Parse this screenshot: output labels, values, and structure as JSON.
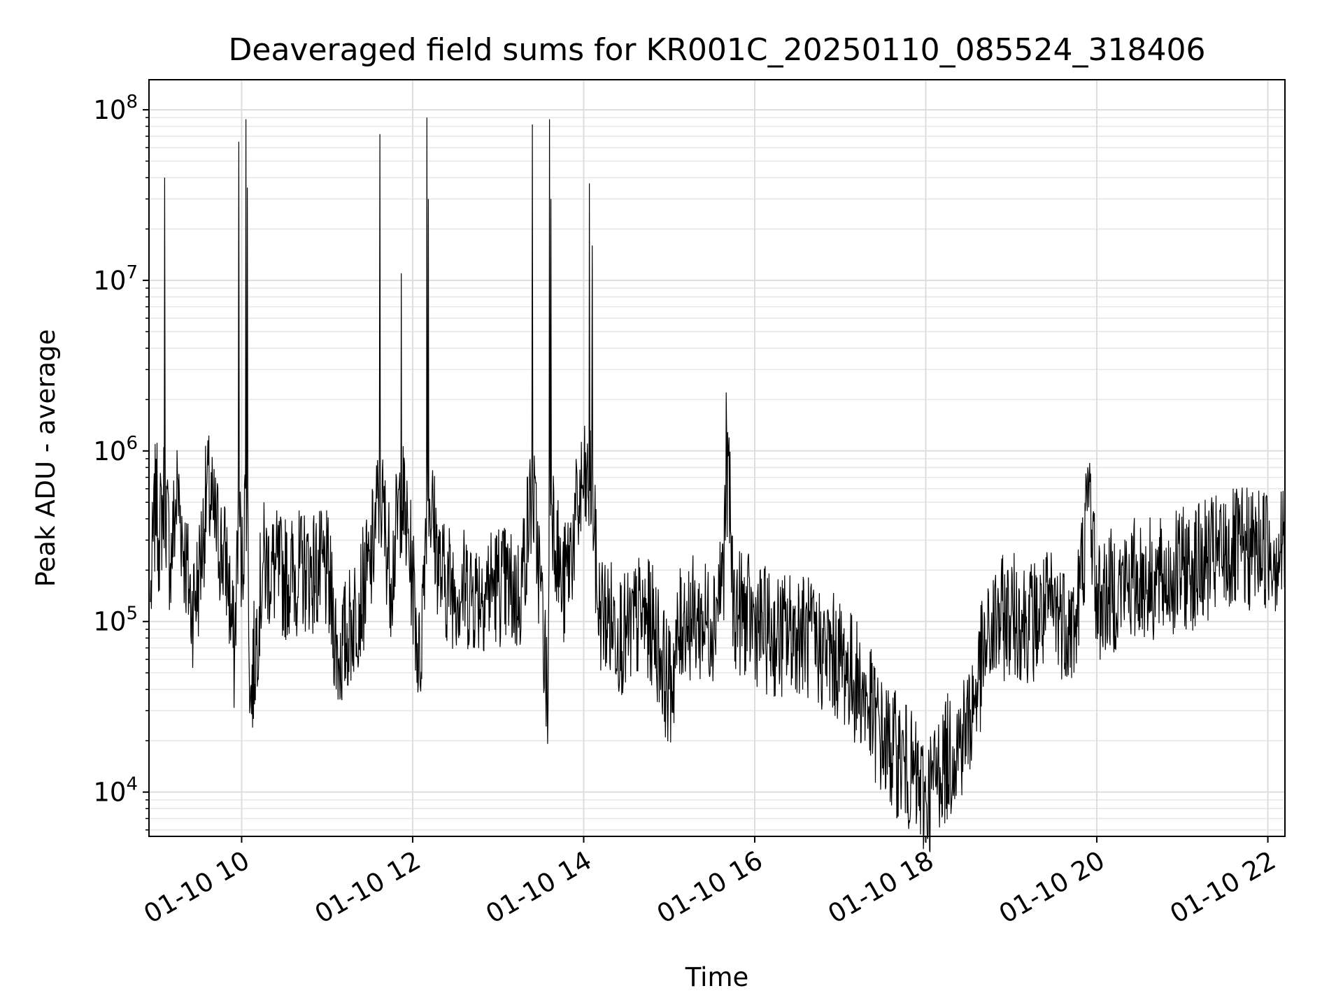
{
  "chart_data": {
    "type": "line",
    "title": "Deaveraged field sums for KR001C_20250110_085524_318406",
    "xlabel": "Time",
    "ylabel": "Peak ADU - average",
    "x_scale": "time",
    "y_scale": "log",
    "grid": true,
    "xlim": [
      "2025-01-10 08:55",
      "2025-01-10 22:12"
    ],
    "ylim": [
      5500,
      150000000
    ],
    "x_ticks": [
      "01-10 10",
      "01-10 12",
      "01-10 14",
      "01-10 16",
      "01-10 18",
      "01-10 20",
      "01-10 22"
    ],
    "y_ticks": [
      {
        "base": "10",
        "exp": "4",
        "value": 10000
      },
      {
        "base": "10",
        "exp": "5",
        "value": 100000
      },
      {
        "base": "10",
        "exp": "6",
        "value": 1000000
      },
      {
        "base": "10",
        "exp": "7",
        "value": 10000000
      },
      {
        "base": "10",
        "exp": "8",
        "value": 100000000
      }
    ],
    "series": [
      {
        "color": "#000000",
        "points": [
          [
            "2025-01-10 08:56",
            130000
          ],
          [
            "2025-01-10 09:00",
            900000
          ],
          [
            "2025-01-10 09:02",
            300000
          ],
          [
            "2025-01-10 09:06",
            40000000
          ],
          [
            "2025-01-10 09:10",
            220000
          ],
          [
            "2025-01-10 09:15",
            700000
          ],
          [
            "2025-01-10 09:20",
            250000
          ],
          [
            "2025-01-10 09:25",
            120000
          ],
          [
            "2025-01-10 09:30",
            180000
          ],
          [
            "2025-01-10 09:36",
            850000
          ],
          [
            "2025-01-10 09:40",
            400000
          ],
          [
            "2025-01-10 09:50",
            200000
          ],
          [
            "2025-01-10 09:55",
            60000
          ],
          [
            "2025-01-10 09:58",
            65000000
          ],
          [
            "2025-01-10 10:00",
            180000
          ],
          [
            "2025-01-10 10:03",
            88000000
          ],
          [
            "2025-01-10 10:04",
            35000000
          ],
          [
            "2025-01-10 10:06",
            32000
          ],
          [
            "2025-01-10 10:15",
            220000
          ],
          [
            "2025-01-10 10:30",
            180000
          ],
          [
            "2025-01-10 10:45",
            200000
          ],
          [
            "2025-01-10 11:00",
            190000
          ],
          [
            "2025-01-10 11:08",
            60000
          ],
          [
            "2025-01-10 11:30",
            200000
          ],
          [
            "2025-01-10 11:37",
            72000000
          ],
          [
            "2025-01-10 11:45",
            180000
          ],
          [
            "2025-01-10 11:52",
            11000000
          ],
          [
            "2025-01-10 12:00",
            180000
          ],
          [
            "2025-01-10 12:05",
            50000
          ],
          [
            "2025-01-10 12:10",
            90000000
          ],
          [
            "2025-01-10 12:11",
            30000000
          ],
          [
            "2025-01-10 12:20",
            180000
          ],
          [
            "2025-01-10 12:30",
            160000
          ],
          [
            "2025-01-10 12:45",
            150000
          ],
          [
            "2025-01-10 13:00",
            170000
          ],
          [
            "2025-01-10 13:15",
            140000
          ],
          [
            "2025-01-10 13:24",
            82000000
          ],
          [
            "2025-01-10 13:30",
            150000
          ],
          [
            "2025-01-10 13:35",
            30000
          ],
          [
            "2025-01-10 13:36",
            88000000
          ],
          [
            "2025-01-10 13:37",
            30000000
          ],
          [
            "2025-01-10 13:45",
            140000
          ],
          [
            "2025-01-10 13:59",
            600000
          ],
          [
            "2025-01-10 14:04",
            37000000
          ],
          [
            "2025-01-10 14:06",
            16000000
          ],
          [
            "2025-01-10 14:10",
            120000
          ],
          [
            "2025-01-10 14:20",
            100000
          ],
          [
            "2025-01-10 14:30",
            80000
          ],
          [
            "2025-01-10 14:40",
            110000
          ],
          [
            "2025-01-10 14:50",
            90000
          ],
          [
            "2025-01-10 15:00",
            40000
          ],
          [
            "2025-01-10 15:10",
            110000
          ],
          [
            "2025-01-10 15:20",
            100000
          ],
          [
            "2025-01-10 15:30",
            100000
          ],
          [
            "2025-01-10 15:38",
            200000
          ],
          [
            "2025-01-10 15:40",
            2200000
          ],
          [
            "2025-01-10 15:42",
            1200000
          ],
          [
            "2025-01-10 15:45",
            120000
          ],
          [
            "2025-01-10 16:00",
            100000
          ],
          [
            "2025-01-10 16:15",
            80000
          ],
          [
            "2025-01-10 16:30",
            90000
          ],
          [
            "2025-01-10 16:45",
            70000
          ],
          [
            "2025-01-10 17:00",
            60000
          ],
          [
            "2025-01-10 17:15",
            40000
          ],
          [
            "2025-01-10 17:30",
            20000
          ],
          [
            "2025-01-10 17:45",
            15000
          ],
          [
            "2025-01-10 18:00",
            9000
          ],
          [
            "2025-01-10 18:10",
            14000
          ],
          [
            "2025-01-10 18:20",
            18000
          ],
          [
            "2025-01-10 18:30",
            25000
          ],
          [
            "2025-01-10 18:40",
            60000
          ],
          [
            "2025-01-10 18:50",
            100000
          ],
          [
            "2025-01-10 19:00",
            110000
          ],
          [
            "2025-01-10 19:15",
            100000
          ],
          [
            "2025-01-10 19:30",
            120000
          ],
          [
            "2025-01-10 19:45",
            90000
          ],
          [
            "2025-01-10 19:55",
            850000
          ],
          [
            "2025-01-10 20:00",
            130000
          ],
          [
            "2025-01-10 20:15",
            160000
          ],
          [
            "2025-01-10 20:30",
            180000
          ],
          [
            "2025-01-10 20:45",
            170000
          ],
          [
            "2025-01-10 21:00",
            200000
          ],
          [
            "2025-01-10 21:15",
            220000
          ],
          [
            "2025-01-10 21:30",
            250000
          ],
          [
            "2025-01-10 21:45",
            260000
          ],
          [
            "2025-01-10 22:00",
            280000
          ],
          [
            "2025-01-10 22:05",
            250000
          ],
          [
            "2025-01-10 22:10",
            280000
          ],
          [
            "2025-01-10 22:12",
            250000
          ]
        ]
      }
    ]
  }
}
